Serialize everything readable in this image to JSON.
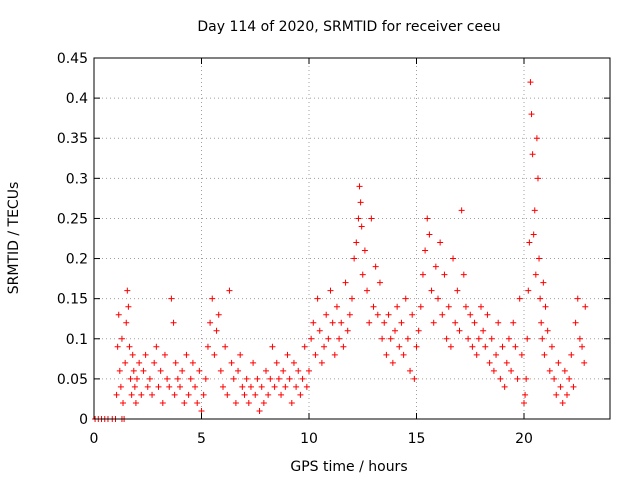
{
  "chart_data": {
    "type": "scatter",
    "title": "Day 114 of 2020, SRMTID for receiver ceeu",
    "xlabel": "GPS time / hours",
    "ylabel": "SRMTID / TECUs",
    "xlim": [
      0,
      24
    ],
    "ylim": [
      0,
      0.45
    ],
    "xticks": [
      0,
      5,
      10,
      15,
      20
    ],
    "xtick_labels": [
      "0",
      "5",
      "10",
      "15",
      "20"
    ],
    "yticks": [
      0,
      0.05,
      0.1,
      0.15,
      0.2,
      0.25,
      0.3,
      0.35,
      0.4,
      0.45
    ],
    "ytick_labels": [
      "0",
      "0.05",
      "0.1",
      "0.15",
      "0.2",
      "0.25",
      "0.3",
      "0.35",
      "0.4",
      "0.45"
    ],
    "grid": true,
    "marker": "+",
    "marker_color": "#ff0000",
    "series": [
      {
        "name": "SRMTID",
        "x": [
          0.05,
          0.2,
          0.35,
          0.5,
          0.65,
          0.85,
          1.0,
          1.3,
          1.4,
          1.05,
          1.1,
          1.15,
          1.2,
          1.25,
          1.3,
          1.35,
          1.45,
          1.5,
          1.55,
          1.6,
          1.65,
          1.7,
          1.75,
          1.8,
          1.85,
          1.9,
          1.95,
          2.0,
          2.1,
          2.2,
          2.3,
          2.4,
          2.5,
          2.6,
          2.7,
          2.8,
          2.9,
          3.0,
          3.1,
          3.2,
          3.3,
          3.4,
          3.5,
          3.6,
          3.7,
          3.75,
          3.8,
          3.9,
          4.0,
          4.1,
          4.2,
          4.3,
          4.4,
          4.5,
          4.6,
          4.7,
          4.8,
          4.9,
          5.0,
          5.1,
          5.2,
          5.3,
          5.4,
          5.5,
          5.6,
          5.7,
          5.8,
          5.9,
          6.0,
          6.1,
          6.2,
          6.3,
          6.4,
          6.5,
          6.6,
          6.7,
          6.8,
          6.9,
          7.0,
          7.1,
          7.2,
          7.3,
          7.4,
          7.5,
          7.6,
          7.7,
          7.8,
          7.9,
          8.0,
          8.1,
          8.2,
          8.3,
          8.4,
          8.5,
          8.6,
          8.7,
          8.8,
          8.9,
          9.0,
          9.1,
          9.2,
          9.3,
          9.4,
          9.5,
          9.6,
          9.7,
          9.8,
          9.9,
          10.0,
          10.1,
          10.2,
          10.3,
          10.4,
          10.5,
          10.6,
          10.7,
          10.8,
          10.9,
          11.0,
          11.1,
          11.2,
          11.3,
          11.4,
          11.5,
          11.6,
          11.7,
          11.8,
          11.9,
          12.0,
          12.1,
          12.2,
          12.3,
          12.35,
          12.4,
          12.45,
          12.5,
          12.6,
          12.7,
          12.8,
          12.9,
          13.0,
          13.1,
          13.2,
          13.3,
          13.4,
          13.5,
          13.6,
          13.7,
          13.8,
          13.9,
          14.0,
          14.1,
          14.2,
          14.3,
          14.4,
          14.5,
          14.6,
          14.7,
          14.8,
          14.9,
          15.0,
          15.1,
          15.2,
          15.3,
          15.4,
          15.5,
          15.6,
          15.7,
          15.8,
          15.9,
          16.0,
          16.1,
          16.2,
          16.3,
          16.4,
          16.5,
          16.6,
          16.7,
          16.8,
          16.9,
          17.0,
          17.1,
          17.2,
          17.3,
          17.4,
          17.5,
          17.6,
          17.7,
          17.8,
          17.9,
          18.0,
          18.1,
          18.2,
          18.3,
          18.4,
          18.5,
          18.6,
          18.7,
          18.8,
          18.9,
          19.0,
          19.1,
          19.2,
          19.3,
          19.4,
          19.5,
          19.6,
          19.7,
          19.8,
          19.9,
          20.0,
          20.05,
          20.1,
          20.15,
          20.2,
          20.25,
          20.3,
          20.35,
          20.4,
          20.45,
          20.5,
          20.55,
          20.6,
          20.65,
          20.7,
          20.75,
          20.8,
          20.85,
          20.9,
          20.95,
          21.0,
          21.1,
          21.2,
          21.3,
          21.4,
          21.5,
          21.6,
          21.7,
          21.8,
          21.9,
          22.0,
          22.1,
          22.2,
          22.3,
          22.4,
          22.5,
          22.6,
          22.7,
          22.8,
          22.85
        ],
        "y": [
          0,
          0,
          0,
          0,
          0,
          0,
          0,
          0,
          0,
          0.03,
          0.09,
          0.13,
          0.06,
          0.04,
          0.1,
          0.02,
          0.07,
          0.12,
          0.16,
          0.14,
          0.09,
          0.05,
          0.03,
          0.08,
          0.06,
          0.04,
          0.02,
          0.05,
          0.07,
          0.03,
          0.06,
          0.08,
          0.04,
          0.05,
          0.03,
          0.07,
          0.09,
          0.04,
          0.06,
          0.02,
          0.08,
          0.05,
          0.04,
          0.15,
          0.12,
          0.03,
          0.07,
          0.05,
          0.04,
          0.06,
          0.02,
          0.08,
          0.03,
          0.05,
          0.07,
          0.04,
          0.02,
          0.06,
          0.01,
          0.03,
          0.05,
          0.09,
          0.12,
          0.15,
          0.08,
          0.11,
          0.13,
          0.06,
          0.04,
          0.09,
          0.03,
          0.16,
          0.07,
          0.05,
          0.02,
          0.06,
          0.08,
          0.04,
          0.03,
          0.05,
          0.02,
          0.04,
          0.07,
          0.03,
          0.05,
          0.01,
          0.04,
          0.02,
          0.06,
          0.03,
          0.05,
          0.09,
          0.04,
          0.07,
          0.05,
          0.03,
          0.06,
          0.04,
          0.08,
          0.05,
          0.02,
          0.07,
          0.04,
          0.06,
          0.03,
          0.05,
          0.09,
          0.04,
          0.06,
          0.1,
          0.12,
          0.08,
          0.15,
          0.11,
          0.07,
          0.09,
          0.13,
          0.1,
          0.16,
          0.12,
          0.08,
          0.14,
          0.1,
          0.12,
          0.09,
          0.17,
          0.11,
          0.13,
          0.15,
          0.2,
          0.22,
          0.25,
          0.29,
          0.27,
          0.24,
          0.18,
          0.21,
          0.16,
          0.12,
          0.25,
          0.14,
          0.19,
          0.13,
          0.17,
          0.1,
          0.12,
          0.08,
          0.13,
          0.1,
          0.07,
          0.11,
          0.14,
          0.09,
          0.12,
          0.08,
          0.15,
          0.1,
          0.06,
          0.13,
          0.05,
          0.09,
          0.11,
          0.14,
          0.18,
          0.21,
          0.25,
          0.23,
          0.16,
          0.12,
          0.19,
          0.15,
          0.22,
          0.13,
          0.18,
          0.1,
          0.14,
          0.09,
          0.2,
          0.12,
          0.16,
          0.11,
          0.26,
          0.18,
          0.14,
          0.1,
          0.13,
          0.09,
          0.12,
          0.08,
          0.1,
          0.14,
          0.11,
          0.09,
          0.13,
          0.07,
          0.1,
          0.06,
          0.08,
          0.12,
          0.05,
          0.09,
          0.04,
          0.07,
          0.1,
          0.06,
          0.12,
          0.09,
          0.05,
          0.15,
          0.08,
          0.02,
          0.03,
          0.05,
          0.1,
          0.16,
          0.22,
          0.42,
          0.38,
          0.33,
          0.23,
          0.26,
          0.18,
          0.35,
          0.3,
          0.2,
          0.15,
          0.12,
          0.1,
          0.17,
          0.08,
          0.14,
          0.11,
          0.06,
          0.09,
          0.05,
          0.03,
          0.07,
          0.04,
          0.02,
          0.06,
          0.03,
          0.05,
          0.08,
          0.04,
          0.12,
          0.15,
          0.1,
          0.09,
          0.07,
          0.14
        ]
      }
    ]
  }
}
